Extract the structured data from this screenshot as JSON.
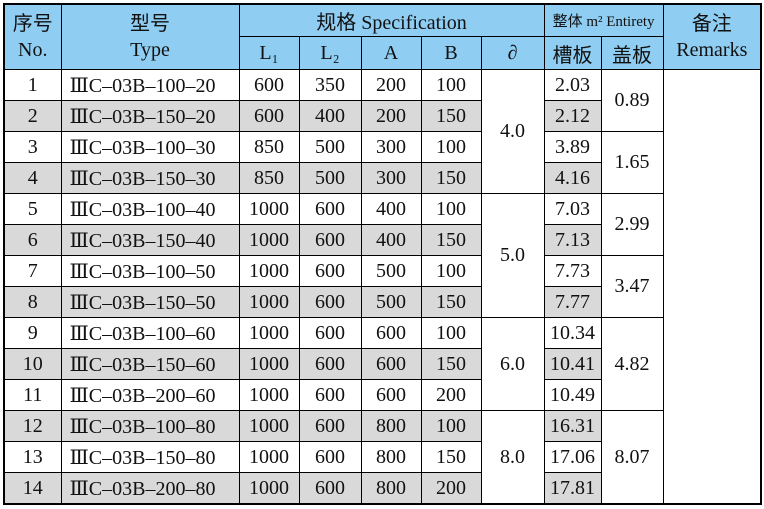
{
  "header": {
    "no": {
      "cn": "序号",
      "en": "No."
    },
    "type": {
      "cn": "型号",
      "en": "Type"
    },
    "specification": "规格 Specification",
    "entirety": "整体 m² Entirety",
    "remarks": {
      "cn": "备注",
      "en": "Remarks"
    },
    "l1": "L₁",
    "l2": "L₂",
    "a": "A",
    "b": "B",
    "thickness": "∂",
    "slot": "槽板",
    "cover": "盖板"
  },
  "table": {
    "rows": [
      {
        "no": "1",
        "type": "ⅢC–03B–100–20",
        "l1": "600",
        "l2": "350",
        "a": "200",
        "b": "100",
        "thickness": "4.0",
        "slot": "2.03",
        "cover": "0.89"
      },
      {
        "no": "2",
        "type": "ⅢC–03B–150–20",
        "l1": "600",
        "l2": "400",
        "a": "200",
        "b": "150",
        "slot": "2.12"
      },
      {
        "no": "3",
        "type": "ⅢC–03B–100–30",
        "l1": "850",
        "l2": "500",
        "a": "300",
        "b": "100",
        "slot": "3.89",
        "cover": "1.65"
      },
      {
        "no": "4",
        "type": "ⅢC–03B–150–30",
        "l1": "850",
        "l2": "500",
        "a": "300",
        "b": "150",
        "slot": "4.16"
      },
      {
        "no": "5",
        "type": "ⅢC–03B–100–40",
        "l1": "1000",
        "l2": "600",
        "a": "400",
        "b": "100",
        "thickness": "5.0",
        "slot": "7.03",
        "cover": "2.99"
      },
      {
        "no": "6",
        "type": "ⅢC–03B–150–40",
        "l1": "1000",
        "l2": "600",
        "a": "400",
        "b": "150",
        "slot": "7.13"
      },
      {
        "no": "7",
        "type": "ⅢC–03B–100–50",
        "l1": "1000",
        "l2": "600",
        "a": "500",
        "b": "100",
        "slot": "7.73",
        "cover": "3.47"
      },
      {
        "no": "8",
        "type": "ⅢC–03B–150–50",
        "l1": "1000",
        "l2": "600",
        "a": "500",
        "b": "150",
        "slot": "7.77"
      },
      {
        "no": "9",
        "type": "ⅢC–03B–100–60",
        "l1": "1000",
        "l2": "600",
        "a": "600",
        "b": "100",
        "thickness": "6.0",
        "slot": "10.34",
        "cover": "4.82"
      },
      {
        "no": "10",
        "type": "ⅢC–03B–150–60",
        "l1": "1000",
        "l2": "600",
        "a": "600",
        "b": "150",
        "slot": "10.41"
      },
      {
        "no": "11",
        "type": "ⅢC–03B–200–60",
        "l1": "1000",
        "l2": "600",
        "a": "600",
        "b": "200",
        "slot": "10.49"
      },
      {
        "no": "12",
        "type": "ⅢC–03B–100–80",
        "l1": "1000",
        "l2": "600",
        "a": "800",
        "b": "100",
        "thickness": "8.0",
        "slot": "16.31",
        "cover": "8.07"
      },
      {
        "no": "13",
        "type": "ⅢC–03B–150–80",
        "l1": "1000",
        "l2": "600",
        "a": "800",
        "b": "150",
        "slot": "17.06"
      },
      {
        "no": "14",
        "type": "ⅢC–03B–200–80",
        "l1": "1000",
        "l2": "600",
        "a": "800",
        "b": "200",
        "slot": "17.81"
      }
    ]
  }
}
